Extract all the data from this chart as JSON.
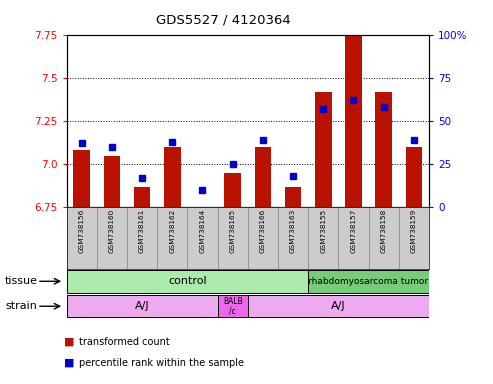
{
  "title": "GDS5527 / 4120364",
  "samples": [
    "GSM738156",
    "GSM738160",
    "GSM738161",
    "GSM738162",
    "GSM738164",
    "GSM738165",
    "GSM738166",
    "GSM738163",
    "GSM738155",
    "GSM738157",
    "GSM738158",
    "GSM738159"
  ],
  "transformed_count": [
    7.08,
    7.05,
    6.87,
    7.1,
    6.75,
    6.95,
    7.1,
    6.87,
    7.42,
    7.85,
    7.42,
    7.1
  ],
  "percentile_rank": [
    37,
    35,
    17,
    38,
    10,
    25,
    39,
    18,
    57,
    62,
    58,
    39
  ],
  "ylim_left": [
    6.75,
    7.75
  ],
  "ylim_right": [
    0,
    100
  ],
  "yticks_left": [
    6.75,
    7.0,
    7.25,
    7.5,
    7.75
  ],
  "yticks_right": [
    0,
    25,
    50,
    75,
    100
  ],
  "bar_color": "#bb1100",
  "dot_color": "#0000cc",
  "tissue_control_color": "#aaeaaa",
  "tissue_tumor_color": "#77cc77",
  "strain_color": "#eeaaee",
  "strain_BALB_color": "#ee66ee",
  "tick_label_bg": "#cccccc",
  "tissue_row_label": "tissue",
  "strain_row_label": "strain",
  "control_label": "control",
  "tumor_label": "rhabdomyosarcoma tumor",
  "AJ_label": "A/J",
  "BALB_label": "BALB\n/c",
  "legend_red": "transformed count",
  "legend_blue": "percentile rank within the sample",
  "n_control": 8,
  "n_balb": 1,
  "balb_index": 5
}
